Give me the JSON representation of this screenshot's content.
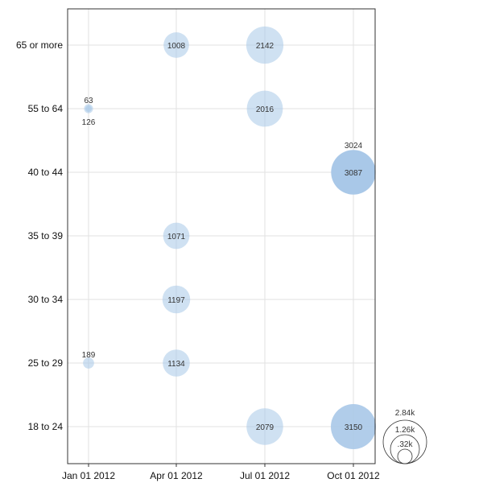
{
  "chart_data": {
    "type": "scatter",
    "subtype": "bubble",
    "x_type": "date",
    "x_categories": [
      "Jan 01 2012",
      "Apr 01 2012",
      "Jul 01 2012",
      "Oct 01 2012"
    ],
    "y_categories": [
      "18 to 24",
      "25 to 29",
      "30 to 34",
      "35 to 39",
      "40 to 44",
      "55 to 64",
      "65 or more"
    ],
    "grid": true,
    "bubble_color": "#a8c8e8",
    "bubbles": [
      {
        "x": "Apr 01 2012",
        "y": "65 or more",
        "value": 1008,
        "label": "1008",
        "label_position": "center"
      },
      {
        "x": "Jul 01 2012",
        "y": "65 or more",
        "value": 2142,
        "label": "2142",
        "label_position": "center"
      },
      {
        "x": "Jan 01 2012",
        "y": "55 to 64",
        "value": 63,
        "label": "63",
        "label_position": "above"
      },
      {
        "x": "Jan 01 2012",
        "y": "55 to 64",
        "value": 126,
        "label": "126",
        "label_position": "below"
      },
      {
        "x": "Jul 01 2012",
        "y": "55 to 64",
        "value": 2016,
        "label": "2016",
        "label_position": "center"
      },
      {
        "x": "Oct 01 2012",
        "y": "40 to 44",
        "value": 3024,
        "label": "3024",
        "label_position": "above"
      },
      {
        "x": "Oct 01 2012",
        "y": "40 to 44",
        "value": 3087,
        "label": "3087",
        "label_position": "center"
      },
      {
        "x": "Apr 01 2012",
        "y": "35 to 39",
        "value": 1071,
        "label": "1071",
        "label_position": "center"
      },
      {
        "x": "Apr 01 2012",
        "y": "30 to 34",
        "value": 1197,
        "label": "1197",
        "label_position": "center"
      },
      {
        "x": "Jan 01 2012",
        "y": "25 to 29",
        "value": 189,
        "label": "189",
        "label_position": "above"
      },
      {
        "x": "Apr 01 2012",
        "y": "25 to 29",
        "value": 1134,
        "label": "1134",
        "label_position": "center"
      },
      {
        "x": "Jul 01 2012",
        "y": "18 to 24",
        "value": 2079,
        "label": "2079",
        "label_position": "center"
      },
      {
        "x": "Oct 01 2012",
        "y": "18 to 24",
        "value": 3150,
        "label": "3150",
        "label_position": "center"
      }
    ],
    "size_legend": [
      {
        "label": "2.84k",
        "value": 2840
      },
      {
        "label": "1.26k",
        "value": 1260
      },
      {
        "label": ".32k",
        "value": 320
      }
    ]
  }
}
